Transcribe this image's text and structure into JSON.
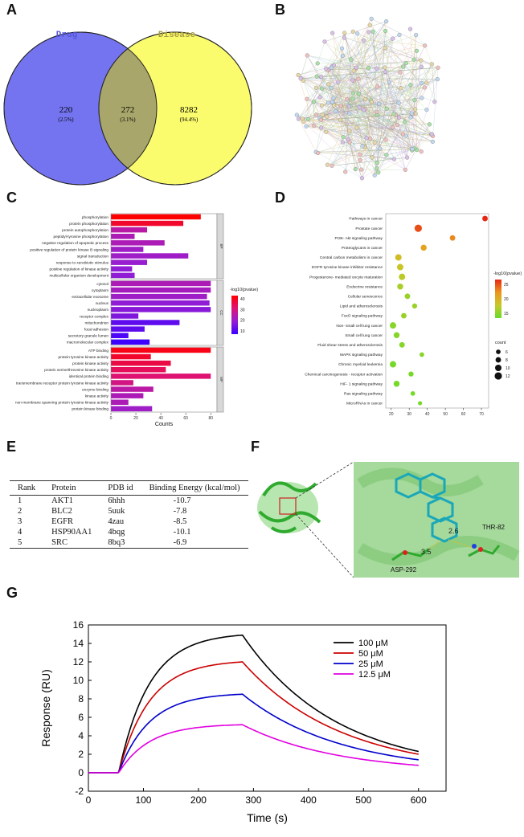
{
  "panels": {
    "A": "A",
    "B": "B",
    "C": "C",
    "D": "D",
    "E": "E",
    "F": "F",
    "G": "G"
  },
  "venn": {
    "left_label": "Drug",
    "right_label": "Disease",
    "left_only": "220",
    "left_only_pct": "(2.5%)",
    "overlap": "272",
    "overlap_pct": "(3.1%)",
    "right_only": "8282",
    "right_only_pct": "(94.4%)",
    "colors": {
      "left": "#7474f0",
      "right": "#fbfb6e",
      "overlap": "#a8a66b"
    }
  },
  "go_bar": {
    "xlabel": "Counts",
    "legend_title": "-log10(pvalue)",
    "legend_ticks": [
      "40",
      "30",
      "20",
      "10"
    ],
    "x_ticks": [
      "0",
      "20",
      "40",
      "60",
      "80"
    ],
    "groups": [
      "BP",
      "CC",
      "MF"
    ],
    "terms": [
      {
        "g": "BP",
        "label": "phosphorylation",
        "v": 72,
        "p": 42
      },
      {
        "g": "BP",
        "label": "protein phosphorylation",
        "v": 58,
        "p": 38
      },
      {
        "g": "BP",
        "label": "protein autophosphorylation",
        "v": 29,
        "p": 26
      },
      {
        "g": "BP",
        "label": "peptidyl-tyrosine phosphorylation",
        "v": 19,
        "p": 24
      },
      {
        "g": "BP",
        "label": "negative regulation of apoptotic process",
        "v": 43,
        "p": 24
      },
      {
        "g": "BP",
        "label": "positive regulation of protein kinase B signaling",
        "v": 26,
        "p": 22
      },
      {
        "g": "BP",
        "label": "signal transduction",
        "v": 62,
        "p": 22
      },
      {
        "g": "BP",
        "label": "response to xenobiotic stimulus",
        "v": 29,
        "p": 21
      },
      {
        "g": "BP",
        "label": "positive regulation of kinase activity",
        "v": 17,
        "p": 20
      },
      {
        "g": "BP",
        "label": "multicellular organism development",
        "v": 19,
        "p": 20
      },
      {
        "g": "CC",
        "label": "cytosol",
        "v": 80,
        "p": 24
      },
      {
        "g": "CC",
        "label": "cytoplasm",
        "v": 80,
        "p": 23
      },
      {
        "g": "CC",
        "label": "extracellular exosome",
        "v": 77,
        "p": 22
      },
      {
        "g": "CC",
        "label": "nucleus",
        "v": 79,
        "p": 20
      },
      {
        "g": "CC",
        "label": "nucleoplasm",
        "v": 80,
        "p": 19
      },
      {
        "g": "CC",
        "label": "receptor complex",
        "v": 22,
        "p": 18
      },
      {
        "g": "CC",
        "label": "mitochondrion",
        "v": 55,
        "p": 14
      },
      {
        "g": "CC",
        "label": "focal adhesion",
        "v": 27,
        "p": 14
      },
      {
        "g": "CC",
        "label": "secretory granule lumen",
        "v": 14,
        "p": 12
      },
      {
        "g": "CC",
        "label": "macromolecular complex",
        "v": 31,
        "p": 10
      },
      {
        "g": "MF",
        "label": "ATP binding",
        "v": 80,
        "p": 40
      },
      {
        "g": "MF",
        "label": "protein tyrosine kinase activity",
        "v": 32,
        "p": 38
      },
      {
        "g": "MF",
        "label": "protein kinase activity",
        "v": 48,
        "p": 36
      },
      {
        "g": "MF",
        "label": "protein serine/threonine kinase activity",
        "v": 44,
        "p": 34
      },
      {
        "g": "MF",
        "label": "identical protein binding",
        "v": 80,
        "p": 32
      },
      {
        "g": "MF",
        "label": "transmembrane receptor protein tyrosine kinase activity",
        "v": 18,
        "p": 30
      },
      {
        "g": "MF",
        "label": "enzyme binding",
        "v": 34,
        "p": 26
      },
      {
        "g": "MF",
        "label": "kinase activity",
        "v": 26,
        "p": 24
      },
      {
        "g": "MF",
        "label": "non-membrane spanning protein tyrosine kinase activity",
        "v": 14,
        "p": 24
      },
      {
        "g": "MF",
        "label": "protein kinase binding",
        "v": 33,
        "p": 22
      }
    ]
  },
  "kegg_dot": {
    "legend_title": "-log10(pvalue)",
    "color_ticks": [
      "25",
      "20",
      "15"
    ],
    "count_title": "count",
    "count_ticks": [
      "6",
      "8",
      "10",
      "12"
    ],
    "x_ticks": [
      "20",
      "30",
      "40",
      "50",
      "60",
      "70"
    ],
    "terms": [
      {
        "label": "Pathways in cancer",
        "x": 72,
        "p": 28,
        "c": 8
      },
      {
        "label": "Prostate cancer",
        "x": 35,
        "p": 26,
        "c": 12
      },
      {
        "label": "PI3K- Akt signaling pathway",
        "x": 54,
        "p": 23,
        "c": 8
      },
      {
        "label": "Proteoglycans in cancer",
        "x": 38,
        "p": 21,
        "c": 9
      },
      {
        "label": "Central carbon metabolism in cancer",
        "x": 24,
        "p": 18,
        "c": 10
      },
      {
        "label": "EGFR tyrosine kinase inhibitor resistance",
        "x": 25,
        "p": 17,
        "c": 10
      },
      {
        "label": "Progesterone- mediated oocyte maturation",
        "x": 26,
        "p": 16,
        "c": 10
      },
      {
        "label": "Endocrine resistance",
        "x": 25,
        "p": 15,
        "c": 9
      },
      {
        "label": "Cellular senescence",
        "x": 29,
        "p": 14,
        "c": 8
      },
      {
        "label": "Lipid and atherosclerosis",
        "x": 33,
        "p": 14,
        "c": 7
      },
      {
        "label": "FoxO signaling pathway",
        "x": 27,
        "p": 14,
        "c": 8
      },
      {
        "label": "Non- small cell lung cancer",
        "x": 21,
        "p": 13,
        "c": 10
      },
      {
        "label": "Small cell lung cancer",
        "x": 23,
        "p": 13,
        "c": 9
      },
      {
        "label": "Fluid shear stress and atherosclerosis",
        "x": 26,
        "p": 13,
        "c": 8
      },
      {
        "label": "MAPK signaling pathway",
        "x": 37,
        "p": 13,
        "c": 6
      },
      {
        "label": "Chronic myeloid leukemia",
        "x": 21,
        "p": 12,
        "c": 10
      },
      {
        "label": "Chemical carcinogenesis - receptor activation",
        "x": 31,
        "p": 12,
        "c": 7
      },
      {
        "label": "HIF- 1 signaling pathway",
        "x": 23,
        "p": 12,
        "c": 9
      },
      {
        "label": "Ras signaling pathway",
        "x": 32,
        "p": 12,
        "c": 6
      },
      {
        "label": "MicroRNAs in cancer",
        "x": 36,
        "p": 12,
        "c": 5
      }
    ]
  },
  "docking_table": {
    "headers": [
      "Rank",
      "Protein",
      "PDB id",
      "Binding Energy (kcal/mol)"
    ],
    "rows": [
      [
        "1",
        "AKT1",
        "6hhh",
        "-10.7"
      ],
      [
        "2",
        "BLC2",
        "5uuk",
        "-7.8"
      ],
      [
        "3",
        "EGFR",
        "4zau",
        "-8.5"
      ],
      [
        "4",
        "HSP90AA1",
        "4bqg",
        "-10.1"
      ],
      [
        "5",
        "SRC",
        "8bq3",
        "-6.9"
      ]
    ]
  },
  "docking_view": {
    "residue_1": "THR-82",
    "residue_2": "ASP-292",
    "dist_1": "2.6",
    "dist_2": "3.5"
  },
  "chart_data": {
    "type": "line",
    "title": "",
    "xlabel": "Time (s)",
    "ylabel": "Response (RU)",
    "xlim": [
      0,
      650
    ],
    "ylim": [
      -2,
      16
    ],
    "x_ticks": [
      "0",
      "100",
      "200",
      "300",
      "400",
      "500",
      "600"
    ],
    "y_ticks": [
      "-2",
      "0",
      "2",
      "4",
      "6",
      "8",
      "10",
      "12",
      "14",
      "16"
    ],
    "association_start": 55,
    "dissociation_start": 280,
    "end": 600,
    "series": [
      {
        "name": "100  μM",
        "color": "#000000",
        "rmax": 14.9,
        "end_value": 2.3
      },
      {
        "name": "50   μM",
        "color": "#cc0000",
        "rmax": 12.0,
        "end_value": 2.0
      },
      {
        "name": "25   μM",
        "color": "#0000cc",
        "rmax": 8.5,
        "end_value": 1.4
      },
      {
        "name": "12.5 μM",
        "color": "#e000e0",
        "rmax": 5.2,
        "end_value": 0.8
      }
    ]
  }
}
